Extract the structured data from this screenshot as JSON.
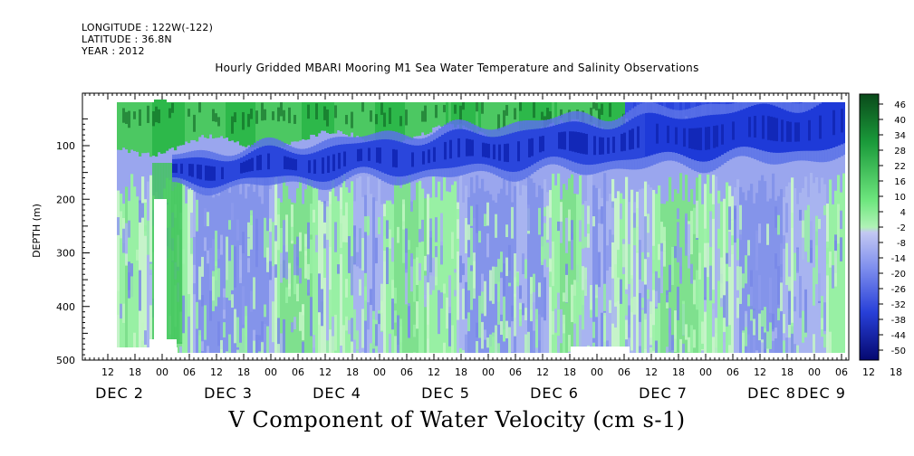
{
  "header": {
    "longitude": "LONGITUDE : 122W(-122)",
    "latitude": "LATITUDE : 36.8N",
    "year": "YEAR : 2012"
  },
  "chart_data": {
    "type": "heatmap",
    "title": "Hourly Gridded MBARI Mooring M1 Sea Water Temperature and Salinity Observations",
    "xlabel": "V Component of Water Velocity (cm s-1)",
    "ylabel": "DEPTH (m)",
    "ylim": [
      500,
      10
    ],
    "y_ticks": [
      100,
      200,
      300,
      400,
      500
    ],
    "x_hour_ticks": [
      "12",
      "18",
      "00",
      "06",
      "12",
      "18",
      "00",
      "06",
      "12",
      "18",
      "00",
      "06",
      "12",
      "18",
      "00",
      "06",
      "12",
      "18",
      "00",
      "06",
      "12",
      "18",
      "00",
      "06",
      "12",
      "18",
      "00",
      "06",
      "12",
      "18",
      "00",
      "06"
    ],
    "x_day_labels": [
      "DEC 2",
      "DEC 3",
      "DEC 4",
      "DEC 5",
      "DEC 6",
      "DEC 7",
      "DEC 8",
      "DEC 9"
    ],
    "colorbar_labels": [
      "46",
      "40",
      "34",
      "28",
      "22",
      "16",
      "10",
      "4",
      "-2",
      "-8",
      "-14",
      "-20",
      "-26",
      "-32",
      "-38",
      "-44",
      "-50"
    ],
    "colorbar_range": [
      -50,
      52
    ],
    "colors": {
      "strong_positive": "#0a5a1e",
      "positive": "#2db84a",
      "weak_positive": "#98f0a4",
      "weak_negative": "#a8b4f0",
      "negative": "#3d5ae8",
      "strong_negative": "#060a78"
    },
    "field_summary": [
      {
        "depth_range": [
          10,
          100
        ],
        "x_range": [
          "DEC 2 00",
          "DEC 6 12"
        ],
        "v_approx": 20
      },
      {
        "depth_range": [
          100,
          180
        ],
        "x_range": [
          "DEC 3 06",
          "DEC 9 06"
        ],
        "v_approx": -30
      },
      {
        "depth_range": [
          10,
          120
        ],
        "x_range": [
          "DEC 7 00",
          "DEC 9 06"
        ],
        "v_approx": -35
      },
      {
        "depth_range": [
          180,
          490
        ],
        "x_range": [
          "DEC 2 06",
          "DEC 9 06"
        ],
        "v_approx": -10
      }
    ]
  }
}
